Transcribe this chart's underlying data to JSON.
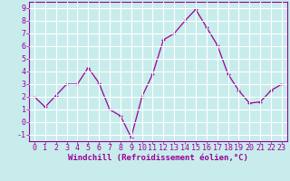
{
  "x": [
    0,
    1,
    2,
    3,
    4,
    5,
    6,
    7,
    8,
    9,
    10,
    11,
    12,
    13,
    14,
    15,
    16,
    17,
    18,
    19,
    20,
    21,
    22,
    23
  ],
  "y": [
    2.0,
    1.2,
    2.1,
    3.0,
    3.0,
    4.3,
    3.1,
    1.0,
    0.5,
    -1.2,
    2.0,
    3.8,
    6.5,
    7.0,
    8.0,
    8.9,
    7.5,
    6.1,
    3.8,
    2.5,
    1.5,
    1.6,
    2.5,
    3.0
  ],
  "line_color": "#990099",
  "marker": "+",
  "bg_color": "#c8ecec",
  "grid_color": "#ffffff",
  "xlabel": "Windchill (Refroidissement éolien,°C)",
  "ylabel": "",
  "xlim": [
    -0.5,
    23.5
  ],
  "ylim": [
    -1.5,
    9.5
  ],
  "xticks": [
    0,
    1,
    2,
    3,
    4,
    5,
    6,
    7,
    8,
    9,
    10,
    11,
    12,
    13,
    14,
    15,
    16,
    17,
    18,
    19,
    20,
    21,
    22,
    23
  ],
  "yticks": [
    -1,
    0,
    1,
    2,
    3,
    4,
    5,
    6,
    7,
    8,
    9
  ],
  "label_color": "#990099",
  "tick_color": "#990099",
  "font": "monospace",
  "tick_fontsize": 6.0,
  "xlabel_fontsize": 6.5
}
